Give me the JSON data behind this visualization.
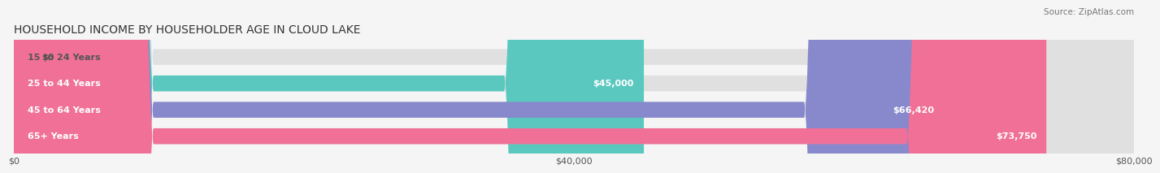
{
  "title": "HOUSEHOLD INCOME BY HOUSEHOLDER AGE IN CLOUD LAKE",
  "source": "Source: ZipAtlas.com",
  "categories": [
    "15 to 24 Years",
    "25 to 44 Years",
    "45 to 64 Years",
    "65+ Years"
  ],
  "values": [
    0,
    45000,
    66420,
    73750
  ],
  "labels": [
    "$0",
    "$45,000",
    "$66,420",
    "$73,750"
  ],
  "bar_colors": [
    "#d4a0c8",
    "#5bc8c0",
    "#8888cc",
    "#f07098"
  ],
  "xlim": [
    0,
    80000
  ],
  "xticks": [
    0,
    40000,
    80000
  ],
  "xtick_labels": [
    "$0",
    "$40,000",
    "$80,000"
  ],
  "title_fontsize": 10,
  "label_fontsize": 8,
  "tick_fontsize": 8,
  "source_fontsize": 7.5,
  "background_color": "#f5f5f5",
  "bar_height": 0.6,
  "rounding_size": 10000
}
